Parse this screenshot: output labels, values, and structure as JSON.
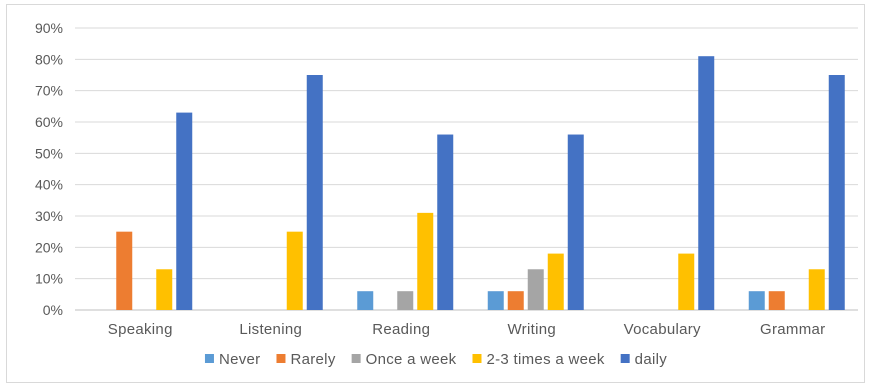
{
  "chart_data": {
    "type": "bar",
    "title": "",
    "xlabel": "",
    "ylabel": "",
    "ylim": [
      0,
      90
    ],
    "yticks": [
      0,
      10,
      20,
      30,
      40,
      50,
      60,
      70,
      80,
      90
    ],
    "ytick_format": "percent",
    "grid": true,
    "legend_position": "bottom",
    "categories": [
      "Speaking",
      "Listening",
      "Reading",
      "Writing",
      "Vocabulary",
      "Grammar"
    ],
    "series": [
      {
        "name": "Never",
        "color": "#5B9BD5",
        "values": [
          0,
          0,
          6,
          6,
          0,
          6
        ]
      },
      {
        "name": "Rarely",
        "color": "#ED7D31",
        "values": [
          25,
          0,
          0,
          6,
          0,
          6
        ]
      },
      {
        "name": "Once a week",
        "color": "#A5A5A5",
        "values": [
          0,
          0,
          6,
          13,
          0,
          0
        ]
      },
      {
        "name": "2-3 times a week",
        "color": "#FFC000",
        "values": [
          13,
          25,
          31,
          18,
          18,
          13
        ]
      },
      {
        "name": "daily",
        "color": "#4472C4",
        "values": [
          63,
          75,
          56,
          56,
          81,
          75
        ]
      }
    ]
  }
}
